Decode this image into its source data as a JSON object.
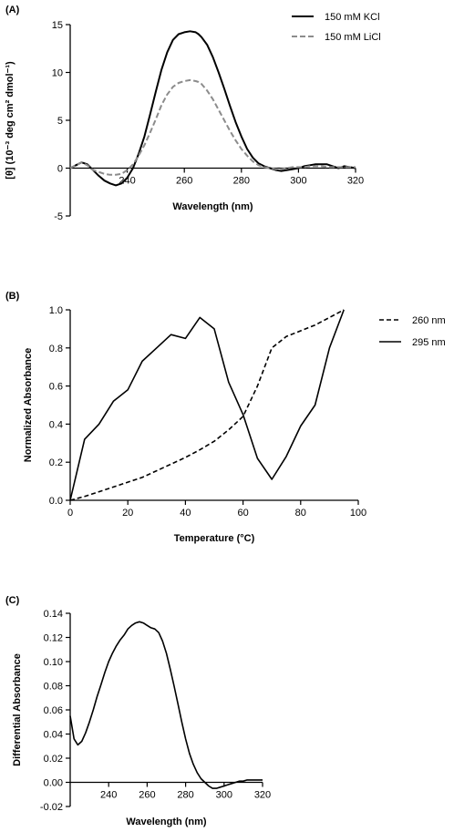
{
  "chart_data": [
    {
      "panel_label": "(A)",
      "type": "line",
      "xlabel": "Wavelength (nm)",
      "ylabel": "[θ] (10⁻³ deg cm² dmol⁻¹)",
      "xlim": [
        220,
        320
      ],
      "ylim": [
        -5,
        15
      ],
      "xticks": [
        240,
        260,
        280,
        300,
        320
      ],
      "yticks": [
        -5,
        0,
        5,
        10,
        15
      ],
      "legend_position": "top-right",
      "colors": {
        "kcl": "#000000",
        "licl": "#8c8c8c"
      },
      "series": [
        {
          "name": "150 mM KCl",
          "style": "solid",
          "x": [
            220,
            222,
            224,
            226,
            228,
            230,
            232,
            234,
            236,
            238,
            240,
            242,
            244,
            246,
            248,
            250,
            252,
            254,
            256,
            258,
            260,
            262,
            264,
            265,
            266,
            268,
            270,
            272,
            274,
            276,
            278,
            280,
            282,
            284,
            286,
            288,
            290,
            292,
            294,
            296,
            298,
            300,
            302,
            304,
            306,
            308,
            310,
            312,
            314,
            316,
            318,
            320
          ],
          "y": [
            0,
            0.3,
            0.6,
            0.4,
            -0.2,
            -0.8,
            -1.3,
            -1.6,
            -1.8,
            -1.6,
            -1.0,
            0,
            1.5,
            3.3,
            5.6,
            8.0,
            10.3,
            12.1,
            13.4,
            14.0,
            14.2,
            14.3,
            14.2,
            14.0,
            13.7,
            12.9,
            11.6,
            10.0,
            8.3,
            6.5,
            4.8,
            3.3,
            2.0,
            1.1,
            0.5,
            0.2,
            0,
            -0.2,
            -0.3,
            -0.2,
            -0.1,
            0,
            0.2,
            0.3,
            0.4,
            0.4,
            0.4,
            0.2,
            0.0,
            0.2,
            0.1,
            0.0
          ]
        },
        {
          "name": "150 mM LiCl",
          "style": "dashed",
          "x": [
            220,
            222,
            224,
            226,
            228,
            230,
            232,
            234,
            236,
            238,
            240,
            242,
            244,
            246,
            248,
            250,
            252,
            254,
            256,
            258,
            260,
            262,
            264,
            265,
            266,
            268,
            270,
            272,
            274,
            276,
            278,
            280,
            282,
            284,
            286,
            288,
            290,
            292,
            294,
            296,
            298,
            300,
            302,
            304,
            306,
            308,
            310,
            312,
            314,
            316,
            318,
            320
          ],
          "y": [
            0,
            0.3,
            0.6,
            0.3,
            -0.2,
            -0.4,
            -0.6,
            -0.7,
            -0.7,
            -0.6,
            -0.2,
            0.4,
            1.3,
            2.4,
            3.7,
            5.1,
            6.6,
            7.7,
            8.5,
            8.9,
            9.1,
            9.2,
            9.1,
            9.0,
            8.8,
            8.1,
            7.2,
            6.1,
            5.0,
            3.9,
            2.9,
            2.0,
            1.3,
            0.7,
            0.3,
            0.1,
            0,
            -0.1,
            -0.1,
            0,
            0.1,
            0.1,
            0.1,
            0.2,
            0.2,
            0.2,
            0.1,
            0.1,
            0.1,
            0.1,
            0.1,
            0.1
          ]
        }
      ]
    },
    {
      "panel_label": "(B)",
      "type": "line",
      "xlabel": "Temperature (°C)",
      "ylabel": "Normalized Absorbance",
      "xlim": [
        0,
        100
      ],
      "ylim": [
        0,
        1.0
      ],
      "xticks": [
        0,
        20,
        40,
        60,
        80,
        100
      ],
      "yticks": [
        "0.0",
        "0.2",
        "0.4",
        "0.6",
        "0.8",
        "1.0"
      ],
      "legend_position": "right",
      "series": [
        {
          "name": "260 nm",
          "style": "dashed",
          "x": [
            0,
            5,
            10,
            15,
            20,
            25,
            30,
            35,
            40,
            45,
            50,
            55,
            60,
            65,
            70,
            75,
            80,
            85,
            90,
            95
          ],
          "y": [
            0,
            0.02,
            0.045,
            0.07,
            0.095,
            0.12,
            0.155,
            0.19,
            0.225,
            0.265,
            0.31,
            0.37,
            0.44,
            0.6,
            0.8,
            0.86,
            0.89,
            0.92,
            0.96,
            1.0
          ]
        },
        {
          "name": "295 nm",
          "style": "solid",
          "x": [
            0,
            5,
            10,
            15,
            20,
            25,
            30,
            35,
            40,
            45,
            50,
            55,
            60,
            65,
            70,
            75,
            80,
            85,
            90,
            95
          ],
          "y": [
            0,
            0.32,
            0.4,
            0.52,
            0.58,
            0.73,
            0.8,
            0.87,
            0.85,
            0.96,
            0.9,
            0.62,
            0.45,
            0.22,
            0.11,
            0.23,
            0.39,
            0.5,
            0.8,
            1.0
          ]
        }
      ]
    },
    {
      "panel_label": "(C)",
      "type": "line",
      "xlabel": "Wavelength (nm)",
      "ylabel": "Differential  Absorbance",
      "xlim": [
        220,
        320
      ],
      "ylim": [
        -0.02,
        0.14
      ],
      "xticks": [
        240,
        260,
        280,
        300,
        320
      ],
      "yticks": [
        "-0.02",
        "0.00",
        "0.02",
        "0.04",
        "0.06",
        "0.08",
        "0.10",
        "0.12",
        "0.14"
      ],
      "series": [
        {
          "name": "",
          "style": "solid",
          "x": [
            220,
            222,
            224,
            226,
            228,
            230,
            232,
            234,
            236,
            238,
            240,
            242,
            244,
            246,
            248,
            250,
            252,
            254,
            256,
            258,
            260,
            262,
            264,
            266,
            268,
            270,
            272,
            274,
            276,
            278,
            280,
            282,
            284,
            286,
            288,
            290,
            292,
            294,
            296,
            298,
            300,
            302,
            304,
            306,
            308,
            310,
            312,
            314,
            316,
            318,
            320
          ],
          "y": [
            0.055,
            0.036,
            0.031,
            0.034,
            0.041,
            0.05,
            0.06,
            0.071,
            0.081,
            0.091,
            0.1,
            0.107,
            0.113,
            0.118,
            0.122,
            0.127,
            0.13,
            0.132,
            0.133,
            0.132,
            0.13,
            0.128,
            0.127,
            0.124,
            0.117,
            0.107,
            0.094,
            0.08,
            0.065,
            0.05,
            0.036,
            0.024,
            0.015,
            0.008,
            0.003,
            0.0,
            -0.003,
            -0.005,
            -0.005,
            -0.004,
            -0.003,
            -0.002,
            -0.001,
            0.0,
            0.001,
            0.001,
            0.002,
            0.002,
            0.002,
            0.002,
            0.002
          ]
        }
      ]
    }
  ]
}
